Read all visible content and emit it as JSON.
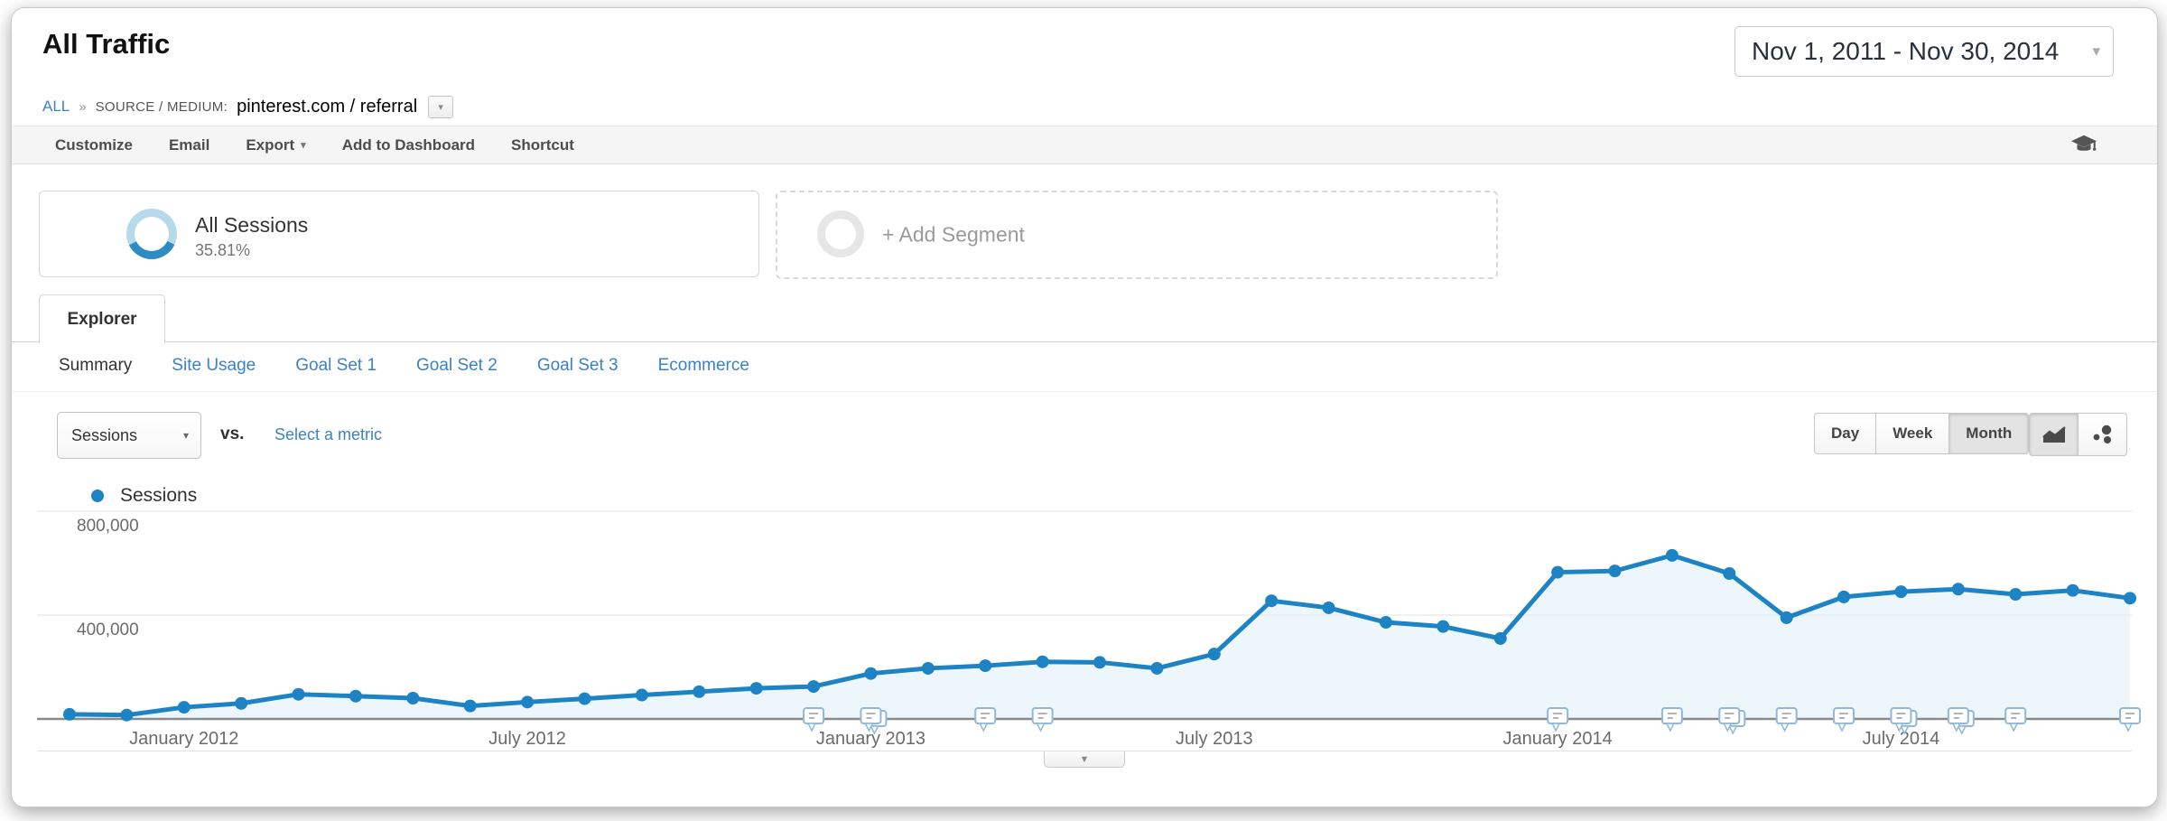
{
  "header": {
    "title": "All Traffic",
    "breadcrumb": {
      "all": "ALL",
      "separator": "»",
      "dimension": "SOURCE / MEDIUM:",
      "value": "pinterest.com / referral"
    },
    "date_range": "Nov 1, 2011 - Nov 30, 2014"
  },
  "toolbar": {
    "items": [
      {
        "label": "Customize"
      },
      {
        "label": "Email"
      },
      {
        "label": "Export"
      },
      {
        "label": "Add to Dashboard"
      },
      {
        "label": "Shortcut"
      }
    ]
  },
  "segments": {
    "all_sessions": {
      "label": "All Sessions",
      "percent": "35.81%",
      "ring_color": "#b7d9ec",
      "arc_color": "#2e8bc4"
    },
    "add_segment": {
      "label": "+ Add Segment",
      "ring_color": "#e6e6e6"
    }
  },
  "explorer": {
    "tab_label": "Explorer",
    "subtabs": [
      {
        "label": "Summary",
        "active": true
      },
      {
        "label": "Site Usage",
        "active": false
      },
      {
        "label": "Goal Set 1",
        "active": false
      },
      {
        "label": "Goal Set 2",
        "active": false
      },
      {
        "label": "Goal Set 3",
        "active": false
      },
      {
        "label": "Ecommerce",
        "active": false
      }
    ]
  },
  "controls": {
    "metric_dropdown": "Sessions",
    "vs_label": "vs.",
    "select_metric": "Select a metric",
    "granularity": [
      {
        "label": "Day",
        "active": false
      },
      {
        "label": "Week",
        "active": false
      },
      {
        "label": "Month",
        "active": true
      }
    ],
    "chart_type_icons": [
      "line-chart-icon",
      "motion-chart-icon"
    ]
  },
  "legend": {
    "label": "Sessions",
    "color": "#1d83c4"
  },
  "chart_data": {
    "type": "line",
    "title": "Sessions by month",
    "x": [
      "Nov 2011",
      "Dec 2011",
      "Jan 2012",
      "Feb 2012",
      "Mar 2012",
      "Apr 2012",
      "May 2012",
      "Jun 2012",
      "Jul 2012",
      "Aug 2012",
      "Sep 2012",
      "Oct 2012",
      "Nov 2012",
      "Dec 2012",
      "Jan 2013",
      "Feb 2013",
      "Mar 2013",
      "Apr 2013",
      "May 2013",
      "Jun 2013",
      "Jul 2013",
      "Aug 2013",
      "Sep 2013",
      "Oct 2013",
      "Nov 2013",
      "Dec 2013",
      "Jan 2014",
      "Feb 2014",
      "Mar 2014",
      "Apr 2014",
      "May 2014",
      "Jun 2014",
      "Jul 2014",
      "Aug 2014",
      "Sep 2014",
      "Oct 2014",
      "Nov 2014"
    ],
    "series": [
      {
        "name": "Sessions",
        "color": "#1d83c4",
        "values": [
          18000,
          15000,
          45000,
          60000,
          95000,
          88000,
          80000,
          50000,
          65000,
          78000,
          92000,
          105000,
          118000,
          125000,
          175000,
          195000,
          205000,
          220000,
          218000,
          195000,
          250000,
          455000,
          428000,
          372000,
          356000,
          310000,
          565000,
          570000,
          630000,
          560000,
          390000,
          470000,
          490000,
          500000,
          480000,
          495000,
          465000
        ]
      }
    ],
    "xticks": [
      {
        "index": 2,
        "label": "January 2012"
      },
      {
        "index": 8,
        "label": "July 2012"
      },
      {
        "index": 14,
        "label": "January 2013"
      },
      {
        "index": 20,
        "label": "July 2013"
      },
      {
        "index": 26,
        "label": "January 2014"
      },
      {
        "index": 32,
        "label": "July 2014"
      }
    ],
    "yticks": [
      {
        "value": 400000,
        "label": "400,000"
      },
      {
        "value": 800000,
        "label": "800,000"
      }
    ],
    "ylim": [
      0,
      800000
    ],
    "grid": "horizontal",
    "legend_position": "top-left",
    "area_fill": "#ddeef8",
    "axis_color": "#8a8a8a",
    "gridline_color": "#e8e8e8",
    "tick_label_color": "#6b6b6b",
    "annotations": {
      "icon": "annotation-bubble-icon",
      "month_indices": [
        13,
        14,
        16,
        17,
        26,
        28,
        29,
        30,
        31,
        32,
        33,
        34,
        36
      ],
      "stacked_indices": [
        14,
        29,
        32,
        33
      ]
    }
  }
}
